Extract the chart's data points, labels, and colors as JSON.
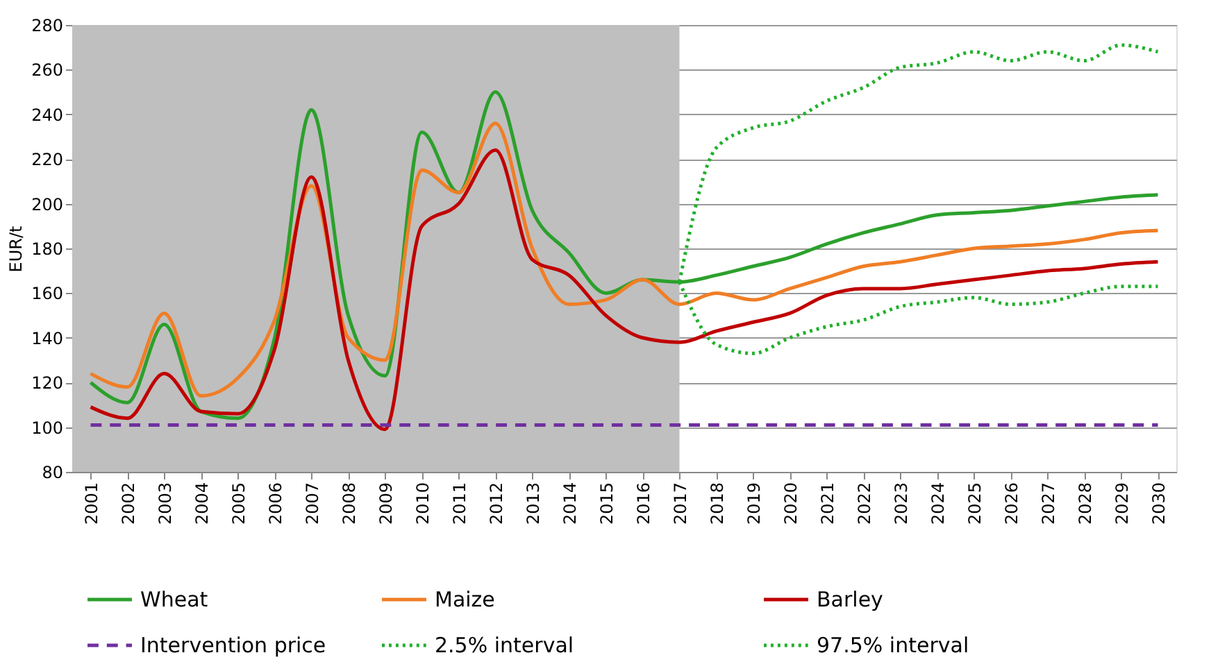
{
  "chart_data": {
    "type": "line",
    "ylabel": "EUR/t",
    "categories": [
      "2001",
      "2002",
      "2003",
      "2004",
      "2005",
      "2006",
      "2007",
      "2008",
      "2009",
      "2010",
      "2011",
      "2012",
      "2013",
      "2014",
      "2015",
      "2016",
      "2017",
      "2018",
      "2019",
      "2020",
      "2021",
      "2022",
      "2023",
      "2024",
      "2025",
      "2026",
      "2027",
      "2028",
      "2029",
      "2030"
    ],
    "series": [
      {
        "name": "Wheat",
        "color": "#2ca02c",
        "line_style": "solid",
        "values": [
          120,
          111,
          146,
          107,
          104,
          140,
          242,
          150,
          123,
          232,
          205,
          250,
          197,
          178,
          160,
          166,
          165,
          168,
          172,
          176,
          182,
          187,
          191,
          195,
          196,
          197,
          199,
          201,
          203,
          204
        ]
      },
      {
        "name": "Maize",
        "color": "#f07e26",
        "line_style": "solid",
        "values": [
          124,
          118,
          151,
          114,
          122,
          148,
          208,
          140,
          130,
          215,
          205,
          236,
          180,
          155,
          157,
          166,
          155,
          160,
          157,
          162,
          167,
          172,
          174,
          177,
          180,
          181,
          182,
          184,
          187,
          188
        ]
      },
      {
        "name": "Barley",
        "color": "#c00000",
        "line_style": "solid",
        "values": [
          109,
          104,
          124,
          107,
          106,
          135,
          212,
          130,
          99,
          190,
          200,
          224,
          175,
          168,
          150,
          140,
          138,
          143,
          147,
          151,
          159,
          162,
          162,
          164,
          166,
          168,
          170,
          171,
          173,
          174
        ]
      },
      {
        "name": "Intervention price",
        "color": "#7030a0",
        "line_style": "dashed",
        "values": [
          101,
          101,
          101,
          101,
          101,
          101,
          101,
          101,
          101,
          101,
          101,
          101,
          101,
          101,
          101,
          101,
          101,
          101,
          101,
          101,
          101,
          101,
          101,
          101,
          101,
          101,
          101,
          101,
          101,
          101
        ]
      },
      {
        "name": "2.5% interval",
        "color": "#22b02c",
        "line_style": "dotted",
        "values": [
          null,
          null,
          null,
          null,
          null,
          null,
          null,
          null,
          null,
          null,
          null,
          null,
          null,
          null,
          null,
          null,
          165,
          137,
          133,
          140,
          145,
          148,
          154,
          156,
          158,
          155,
          156,
          160,
          163,
          163
        ]
      },
      {
        "name": "97.5% interval",
        "color": "#22b02c",
        "line_style": "dotted",
        "values": [
          null,
          null,
          null,
          null,
          null,
          null,
          null,
          null,
          null,
          null,
          null,
          null,
          null,
          null,
          null,
          null,
          165,
          225,
          234,
          237,
          246,
          252,
          261,
          263,
          268,
          264,
          268,
          264,
          271,
          268
        ]
      }
    ],
    "bands": [
      {
        "axis": "x",
        "from": "2001",
        "to": "2017",
        "color": "#bfbfbf"
      }
    ],
    "ylim": [
      80,
      280
    ],
    "yticks": [
      80,
      100,
      120,
      140,
      160,
      180,
      200,
      220,
      240,
      260,
      280
    ],
    "grid": "y",
    "legend": "bottom"
  }
}
